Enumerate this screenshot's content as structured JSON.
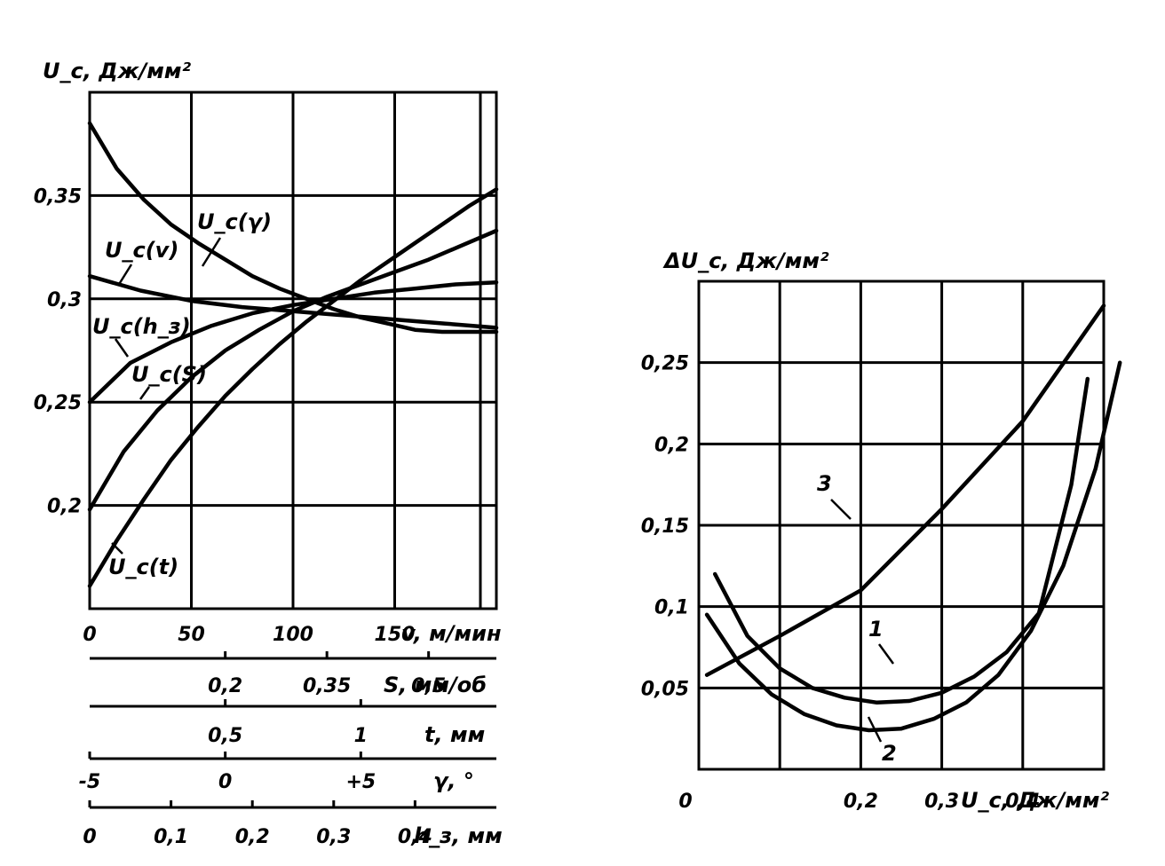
{
  "chart_data": [
    {
      "type": "line",
      "ylabel": "U_c, Дж/мм²",
      "ylim": [
        0.15,
        0.4
      ],
      "y_ticks": [
        {
          "value": 0.35,
          "label": "0,35"
        },
        {
          "value": 0.3,
          "label": "0,3"
        },
        {
          "value": 0.25,
          "label": "0,25"
        },
        {
          "value": 0.2,
          "label": "0,2"
        }
      ],
      "grid": true,
      "x_axes": [
        {
          "name": "v",
          "label": "v, м/мин",
          "range": [
            0,
            200
          ],
          "ticks": [
            {
              "value": 0,
              "label": "0"
            },
            {
              "value": 50,
              "label": "50"
            },
            {
              "value": 100,
              "label": "100"
            },
            {
              "value": 150,
              "label": "150"
            }
          ]
        },
        {
          "name": "S",
          "label": "S, мм/об",
          "range": [
            0,
            0.6
          ],
          "ticks": [
            {
              "value": 0.2,
              "label": "0,2"
            },
            {
              "value": 0.35,
              "label": "0,35"
            },
            {
              "value": 0.5,
              "label": "0,5"
            }
          ]
        },
        {
          "name": "t",
          "label": "t, мм",
          "range": [
            0,
            1.5
          ],
          "ticks": [
            {
              "value": 0.5,
              "label": "0,5"
            },
            {
              "value": 1,
              "label": "1"
            }
          ]
        },
        {
          "name": "gamma",
          "label": "γ, °",
          "range": [
            -5,
            10
          ],
          "ticks": [
            {
              "value": -5,
              "label": "-5"
            },
            {
              "value": 0,
              "label": "0"
            },
            {
              "value": 5,
              "label": "+5"
            }
          ]
        },
        {
          "name": "h3",
          "label": "h_з, мм",
          "range": [
            0,
            0.5
          ],
          "ticks": [
            {
              "value": 0,
              "label": "0"
            },
            {
              "value": 0.1,
              "label": "0,1"
            },
            {
              "value": 0.2,
              "label": "0,2"
            },
            {
              "value": 0.3,
              "label": "0,3"
            },
            {
              "value": 0.4,
              "label": "0,4"
            }
          ]
        }
      ],
      "series": [
        {
          "name": "U_c(γ)",
          "axis": "gamma",
          "x": [
            -5,
            -4,
            -3,
            -2,
            -1,
            0,
            1,
            2,
            3,
            4,
            5,
            6,
            7,
            8,
            9,
            10
          ],
          "y": [
            0.385,
            0.363,
            0.348,
            0.336,
            0.327,
            0.319,
            0.311,
            0.305,
            0.3,
            0.295,
            0.291,
            0.288,
            0.285,
            0.284,
            0.284,
            0.284
          ]
        },
        {
          "name": "U_c(v)",
          "axis": "v",
          "x": [
            0,
            25,
            50,
            75,
            100,
            125,
            150,
            175,
            200
          ],
          "y": [
            0.311,
            0.304,
            0.299,
            0.296,
            0.294,
            0.292,
            0.29,
            0.288,
            0.286
          ]
        },
        {
          "name": "U_c(h_з)",
          "axis": "h3",
          "x": [
            0,
            0.05,
            0.1,
            0.15,
            0.2,
            0.25,
            0.3,
            0.35,
            0.4,
            0.45,
            0.5
          ],
          "y": [
            0.25,
            0.269,
            0.279,
            0.287,
            0.293,
            0.297,
            0.3,
            0.303,
            0.305,
            0.307,
            0.308
          ]
        },
        {
          "name": "U_c(S)",
          "axis": "S",
          "x": [
            0,
            0.05,
            0.1,
            0.15,
            0.2,
            0.25,
            0.3,
            0.35,
            0.4,
            0.45,
            0.5,
            0.55,
            0.6
          ],
          "y": [
            0.198,
            0.226,
            0.246,
            0.262,
            0.275,
            0.285,
            0.294,
            0.301,
            0.307,
            0.313,
            0.319,
            0.326,
            0.333
          ]
        },
        {
          "name": "U_c(t)",
          "axis": "t",
          "x": [
            0,
            0.1,
            0.2,
            0.3,
            0.4,
            0.5,
            0.6,
            0.7,
            0.8,
            0.9,
            1.0,
            1.1,
            1.2,
            1.3,
            1.4,
            1.5
          ],
          "y": [
            0.161,
            0.183,
            0.203,
            0.222,
            0.238,
            0.253,
            0.266,
            0.278,
            0.289,
            0.299,
            0.309,
            0.318,
            0.327,
            0.336,
            0.345,
            0.353
          ]
        }
      ]
    },
    {
      "type": "line",
      "ylabel": "ΔU_c, Дж/мм²",
      "xlabel": "U_c, Дж/мм²",
      "xlim": [
        0,
        0.5
      ],
      "ylim": [
        0,
        0.3
      ],
      "x_ticks": [
        {
          "value": 0,
          "label": "0"
        },
        {
          "value": 0.2,
          "label": "0,2"
        },
        {
          "value": 0.3,
          "label": "0,3"
        },
        {
          "value": 0.4,
          "label": "0,4"
        }
      ],
      "y_ticks": [
        {
          "value": 0.05,
          "label": "0,05"
        },
        {
          "value": 0.1,
          "label": "0,1"
        },
        {
          "value": 0.15,
          "label": "0,15"
        },
        {
          "value": 0.2,
          "label": "0,2"
        },
        {
          "value": 0.25,
          "label": "0,25"
        }
      ],
      "grid": true,
      "series": [
        {
          "name": "1",
          "x": [
            0.02,
            0.06,
            0.1,
            0.14,
            0.18,
            0.22,
            0.26,
            0.3,
            0.34,
            0.38,
            0.42,
            0.46,
            0.48
          ],
          "y": [
            0.12,
            0.082,
            0.062,
            0.05,
            0.044,
            0.041,
            0.042,
            0.047,
            0.057,
            0.072,
            0.096,
            0.175,
            0.24
          ]
        },
        {
          "name": "2",
          "x": [
            0.01,
            0.05,
            0.09,
            0.13,
            0.17,
            0.21,
            0.25,
            0.29,
            0.33,
            0.37,
            0.41,
            0.45,
            0.49,
            0.52
          ],
          "y": [
            0.095,
            0.065,
            0.046,
            0.034,
            0.027,
            0.024,
            0.025,
            0.031,
            0.041,
            0.058,
            0.085,
            0.125,
            0.185,
            0.25
          ]
        },
        {
          "name": "3",
          "x": [
            0.01,
            0.1,
            0.2,
            0.3,
            0.4,
            0.5
          ],
          "y": [
            0.058,
            0.082,
            0.11,
            0.16,
            0.214,
            0.285
          ]
        }
      ]
    }
  ]
}
